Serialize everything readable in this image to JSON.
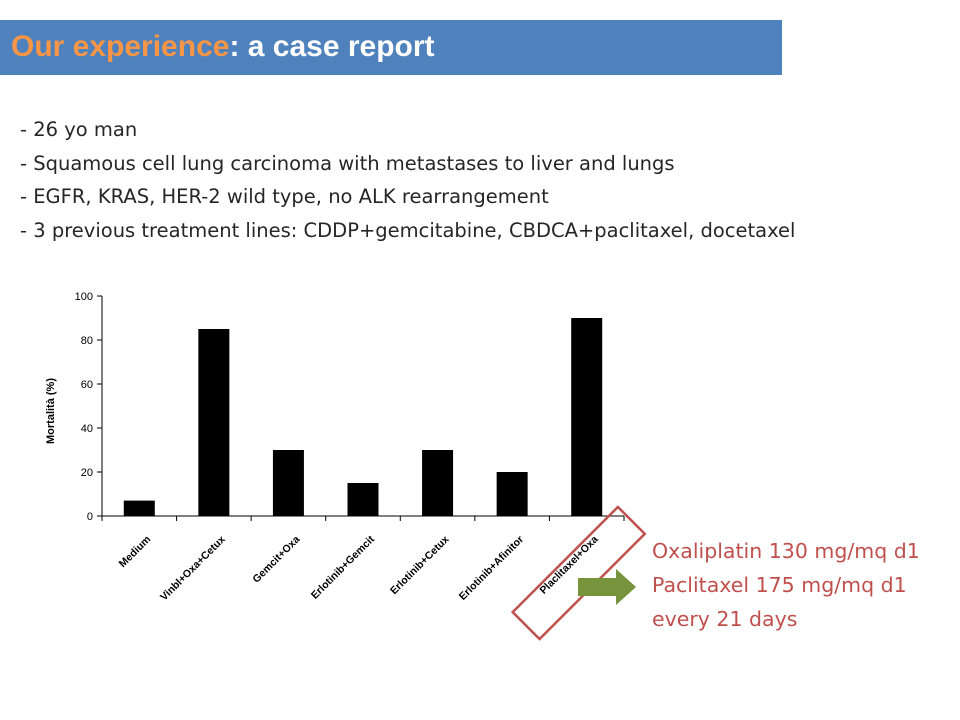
{
  "slide": {
    "title_accent": "Our experience",
    "title_rest": ": a case report",
    "bullets": [
      "- 26 yo man",
      "- Squamous cell lung carcinoma with metastases to liver and lungs",
      "- EGFR, KRAS, HER-2 wild type, no ALK rearrangement",
      "- 3 previous treatment lines: CDDP+gemcitabine, CBDCA+paclitaxel, docetaxel"
    ],
    "regimen_lines": [
      "Oxaliplatin 130 mg/mq d1",
      "Paclitaxel 175 mg/mq d1",
      "every 21 days"
    ]
  },
  "icons": {
    "arrow": "right-arrow-icon"
  },
  "colors": {
    "title_bar": "#4f81bd",
    "title_accent": "#f79646",
    "regimen_text": "#c0504d",
    "highlight_box": "#c0504d",
    "arrow": "#77933c",
    "bars": "#000000"
  },
  "chart_data": {
    "type": "bar",
    "title": "",
    "xlabel": "",
    "ylabel": "Mortalità (%)",
    "ylim": [
      0,
      100
    ],
    "yticks": [
      0,
      20,
      40,
      60,
      80,
      100
    ],
    "grid": false,
    "categories": [
      "Medium",
      "Vinbl+Oxa+Cetux",
      "Gemcit+Oxa",
      "Erlotinib+Gemcit",
      "Erlotinib+Cetux",
      "Erlotinib+Afinitor",
      "Placlitaxel+Oxa"
    ],
    "values": [
      7,
      85,
      30,
      15,
      30,
      20,
      90
    ],
    "highlighted_category": "Placlitaxel+Oxa"
  }
}
